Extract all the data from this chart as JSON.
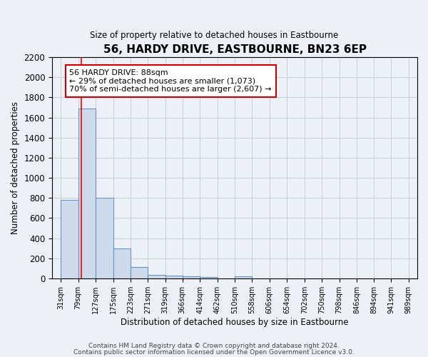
{
  "title": "56, HARDY DRIVE, EASTBOURNE, BN23 6EP",
  "subtitle": "Size of property relative to detached houses in Eastbourne",
  "xlabel": "Distribution of detached houses by size in Eastbourne",
  "ylabel": "Number of detached properties",
  "bar_left_edges": [
    31,
    79,
    127,
    175,
    223,
    271,
    319,
    366,
    414,
    462,
    510,
    558,
    606,
    654,
    702,
    750,
    798,
    846,
    894,
    941
  ],
  "bar_heights": [
    780,
    1690,
    800,
    295,
    110,
    35,
    30,
    20,
    15,
    0,
    20,
    0,
    0,
    0,
    0,
    0,
    0,
    0,
    0,
    0
  ],
  "bin_width": 48,
  "bar_color": "#cddaeb",
  "bar_edge_color": "#6494c0",
  "grid_color": "#c5cdd8",
  "background_color": "#edf1f7",
  "x_tick_labels": [
    "31sqm",
    "79sqm",
    "127sqm",
    "175sqm",
    "223sqm",
    "271sqm",
    "319sqm",
    "366sqm",
    "414sqm",
    "462sqm",
    "510sqm",
    "558sqm",
    "606sqm",
    "654sqm",
    "702sqm",
    "750sqm",
    "798sqm",
    "846sqm",
    "894sqm",
    "941sqm",
    "989sqm"
  ],
  "x_tick_positions": [
    31,
    79,
    127,
    175,
    223,
    271,
    319,
    366,
    414,
    462,
    510,
    558,
    606,
    654,
    702,
    750,
    798,
    846,
    894,
    941,
    989
  ],
  "ylim": [
    0,
    2200
  ],
  "yticks": [
    0,
    200,
    400,
    600,
    800,
    1000,
    1200,
    1400,
    1600,
    1800,
    2000,
    2200
  ],
  "xlim_left": 7,
  "xlim_right": 1013,
  "red_line_x": 88,
  "annotation_line1": "56 HARDY DRIVE: 88sqm",
  "annotation_line2": "← 29% of detached houses are smaller (1,073)",
  "annotation_line3": "70% of semi-detached houses are larger (2,607) →",
  "annotation_box_color": "#ffffff",
  "annotation_box_edge": "#cc0000",
  "footer_line1": "Contains HM Land Registry data © Crown copyright and database right 2024.",
  "footer_line2": "Contains public sector information licensed under the Open Government Licence v3.0."
}
